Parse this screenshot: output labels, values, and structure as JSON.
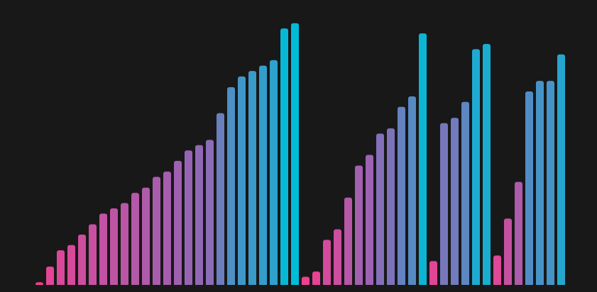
{
  "chart_data": {
    "type": "bar",
    "title": "",
    "xlabel": "",
    "ylabel": "",
    "ylim": [
      0,
      100
    ],
    "grid": false,
    "legend": "none",
    "series": [
      {
        "values": [
          1,
          7,
          13.2,
          15.2,
          19.2,
          23.1,
          27.2,
          29.2,
          31.2,
          35.1,
          37.1,
          41.2,
          43.2,
          47.3,
          51.3,
          53.3,
          55.3,
          65.5,
          75.4,
          79.5,
          81.6,
          83.6,
          85.7,
          97.8,
          99.8,
          3.1,
          5.1,
          17.2,
          21.2,
          33.3,
          45.5,
          49.6,
          57.7,
          59.7,
          67.9,
          71.9,
          95.9,
          9.1,
          61.7,
          63.7,
          69.8,
          89.9,
          91.9,
          11.2,
          25.3,
          39.3,
          73.8,
          77.8,
          77.8,
          87.9
        ]
      }
    ],
    "colors": {
      "background": "#181818",
      "gradient_low": "#f0408f",
      "gradient_mid": "#9b62b3",
      "gradient_high": "#00bcd8"
    }
  }
}
